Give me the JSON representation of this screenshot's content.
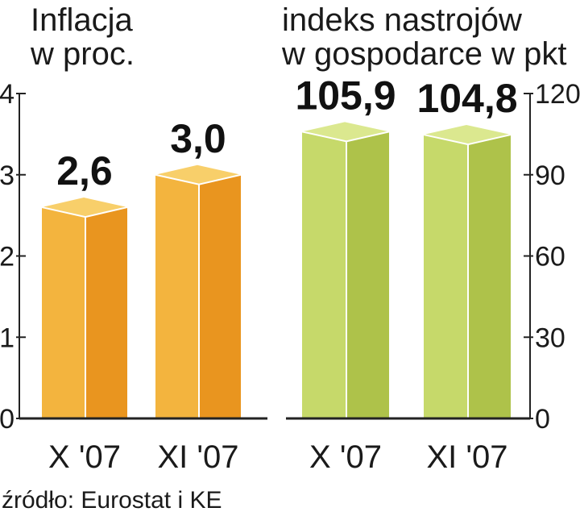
{
  "colors": {
    "left_front": "#f3b43e",
    "left_side": "#e9951f",
    "left_top": "#f8cf6a",
    "right_front": "#c6d96a",
    "right_side": "#aec24a",
    "right_top": "#dbe88f",
    "axis": "#222222"
  },
  "chart_data": [
    {
      "type": "bar",
      "title_lines": [
        "Inflacja",
        "w proc."
      ],
      "categories": [
        "X '07",
        "XI '07"
      ],
      "values": [
        2.6,
        3.0
      ],
      "value_labels": [
        "2,6",
        "3,0"
      ],
      "ylim": [
        0,
        4
      ],
      "yticks": [
        0,
        1,
        2,
        3,
        4
      ],
      "yaxis_position": "left",
      "grid": false
    },
    {
      "type": "bar",
      "title_lines": [
        "indeks nastrojów",
        "w gospodarce w pkt"
      ],
      "categories": [
        "X '07",
        "XI '07"
      ],
      "values": [
        105.9,
        104.8
      ],
      "value_labels": [
        "105,9",
        "104,8"
      ],
      "ylim": [
        0,
        120
      ],
      "yticks": [
        0,
        30,
        60,
        90,
        120
      ],
      "yaxis_position": "right",
      "grid": false
    }
  ],
  "source": "źródło: Eurostat i KE"
}
